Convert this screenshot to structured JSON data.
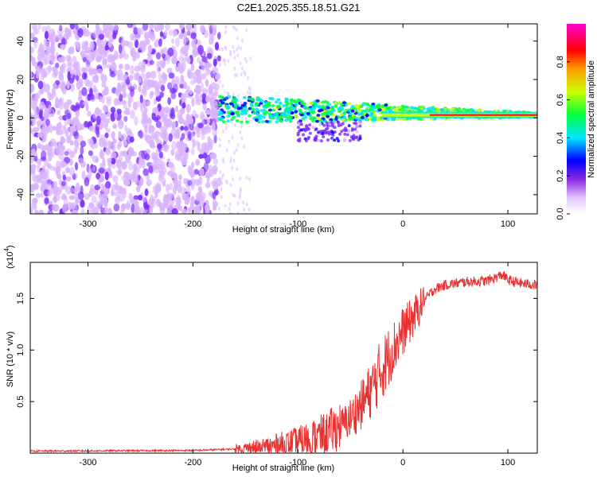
{
  "title": "C2E1.2025.355.18.51.G21",
  "chart_data": [
    {
      "type": "heatmap",
      "name": "spectrogram",
      "xlabel": "Height of straight line (km)",
      "ylabel": "Frequency (Hz)",
      "xlim": [
        -355,
        128
      ],
      "ylim": [
        -50,
        49
      ],
      "xticks": [
        -300,
        -200,
        -100,
        0,
        100
      ],
      "xtick_labels": [
        "-300",
        "-200",
        "-100",
        "0",
        "100"
      ],
      "yticks": [
        -40,
        -20,
        0,
        20,
        40
      ],
      "ytick_labels": [
        "-40",
        "-20",
        "0",
        "20",
        "40"
      ],
      "colorbar": {
        "label": "Normalized spectral amplitude",
        "range": [
          0,
          1
        ],
        "ticks": [
          0.0,
          0.2,
          0.4,
          0.6,
          0.8
        ],
        "tick_labels": [
          "0.0",
          "0.2",
          "0.4",
          "0.6",
          "0.8"
        ],
        "colors": [
          "#ffffff",
          "#d9b3ff",
          "#7a2cff",
          "#0000ff",
          "#00e5ff",
          "#00ff40",
          "#d0ff00",
          "#ffa000",
          "#ff0000",
          "#ff00c8"
        ]
      },
      "regions": [
        {
          "desc": "broadband noise",
          "x": [
            -355,
            -175
          ],
          "freq": [
            -50,
            49
          ],
          "level": 0.15
        },
        {
          "desc": "signal band",
          "x": [
            -175,
            128
          ],
          "freq": [
            -2,
            7
          ],
          "level": 0.6
        },
        {
          "desc": "coherent tone",
          "x": [
            -20,
            128
          ],
          "freq": [
            1.5,
            1.5
          ],
          "level": 0.9
        }
      ]
    },
    {
      "type": "line",
      "name": "snr",
      "xlabel": "Height of straight line (km)",
      "ylabel": "SNR (10 * v/v)",
      "multiplier_label": "(x10",
      "multiplier_exp": "4",
      "multiplier_close": ")",
      "xlim": [
        -355,
        128
      ],
      "ylim": [
        0,
        18500
      ],
      "xticks": [
        -300,
        -200,
        -100,
        0,
        100
      ],
      "xtick_labels": [
        "-300",
        "-200",
        "-100",
        "0",
        "100"
      ],
      "yticks": [
        5000,
        10000,
        15000
      ],
      "ytick_labels": [
        "0.5",
        "1.0",
        "1.5"
      ],
      "color": "#e83232",
      "series": [
        {
          "name": "SNR",
          "x": [
            -355,
            -300,
            -200,
            -160,
            -130,
            -100,
            -80,
            -60,
            -50,
            -40,
            -30,
            -20,
            -10,
            0,
            10,
            20,
            30,
            40,
            60,
            80,
            95,
            100,
            110,
            128
          ],
          "y": [
            200,
            220,
            260,
            400,
            600,
            1000,
            1600,
            2600,
            3400,
            4600,
            6200,
            8200,
            10000,
            11800,
            13200,
            14800,
            15900,
            16300,
            16600,
            16700,
            17300,
            16800,
            16500,
            16300
          ]
        }
      ]
    }
  ]
}
